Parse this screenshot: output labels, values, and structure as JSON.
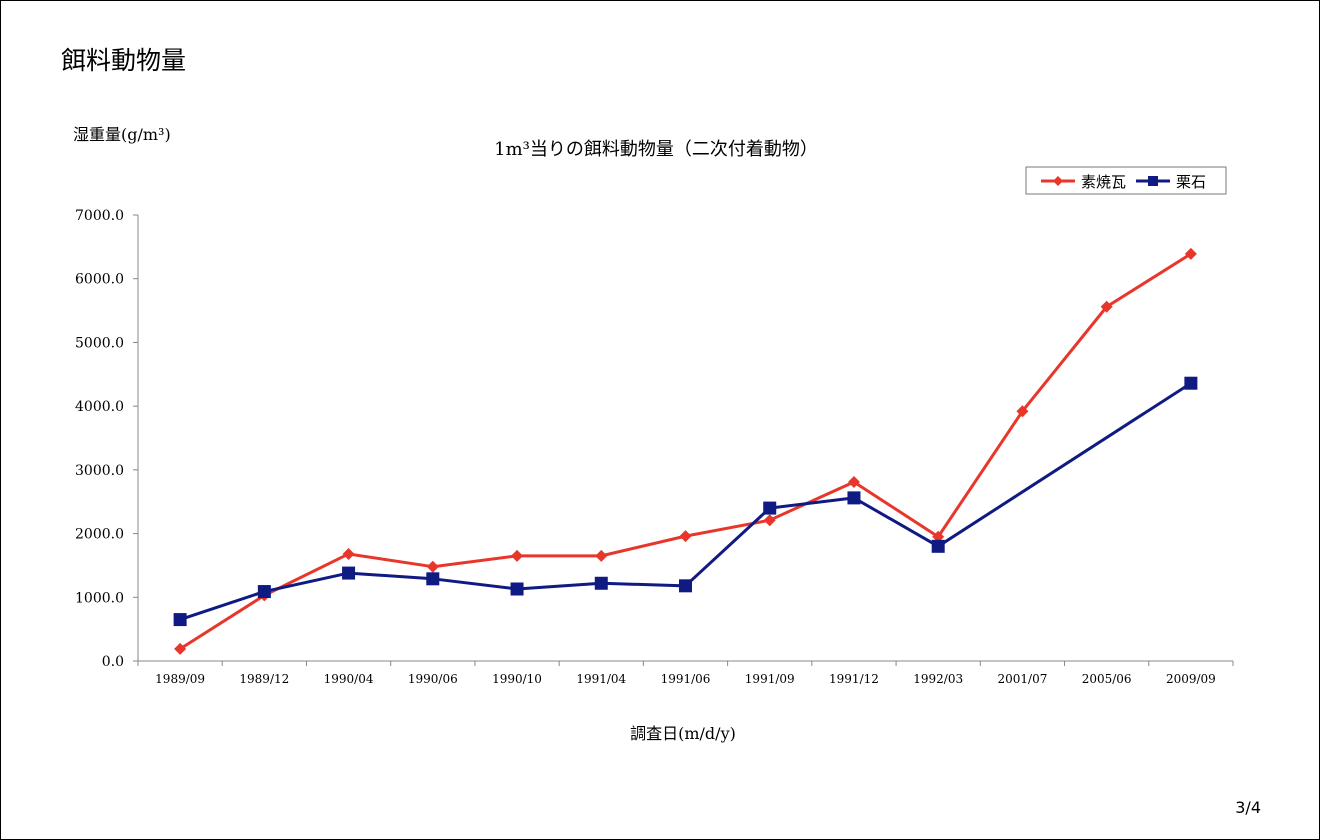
{
  "slide": {
    "title": "餌料動物量",
    "page_number": "3/4"
  },
  "chart_data": {
    "type": "line",
    "title": "1m³当りの餌料動物量（二次付着動物）",
    "ylabel": "湿重量(g/m³)",
    "xlabel": "調査日(m/d/y)",
    "ylim": [
      0,
      7000
    ],
    "yticks": [
      0,
      1000,
      2000,
      3000,
      4000,
      5000,
      6000,
      7000
    ],
    "ytick_labels": [
      "0.0",
      "1000.0",
      "2000.0",
      "3000.0",
      "4000.0",
      "5000.0",
      "6000.0",
      "7000.0"
    ],
    "grid": false,
    "legend_position": "top-right",
    "categories": [
      "1989/09",
      "1989/12",
      "1990/04",
      "1990/06",
      "1990/10",
      "1991/04",
      "1991/06",
      "1991/09",
      "1991/12",
      "1992/03",
      "2001/07",
      "2005/06",
      "2009/09"
    ],
    "series": [
      {
        "name": "素焼瓦",
        "color": "#e8362a",
        "marker": "diamond",
        "values": [
          190,
          1030,
          1680,
          1480,
          1650,
          1650,
          1960,
          2210,
          2810,
          1950,
          3920,
          5560,
          6390
        ]
      },
      {
        "name": "栗石",
        "color": "#0f1a82",
        "marker": "square",
        "values": [
          650,
          1090,
          1380,
          1290,
          1130,
          1220,
          1180,
          2400,
          2560,
          1800,
          null,
          null,
          4360
        ]
      }
    ]
  }
}
